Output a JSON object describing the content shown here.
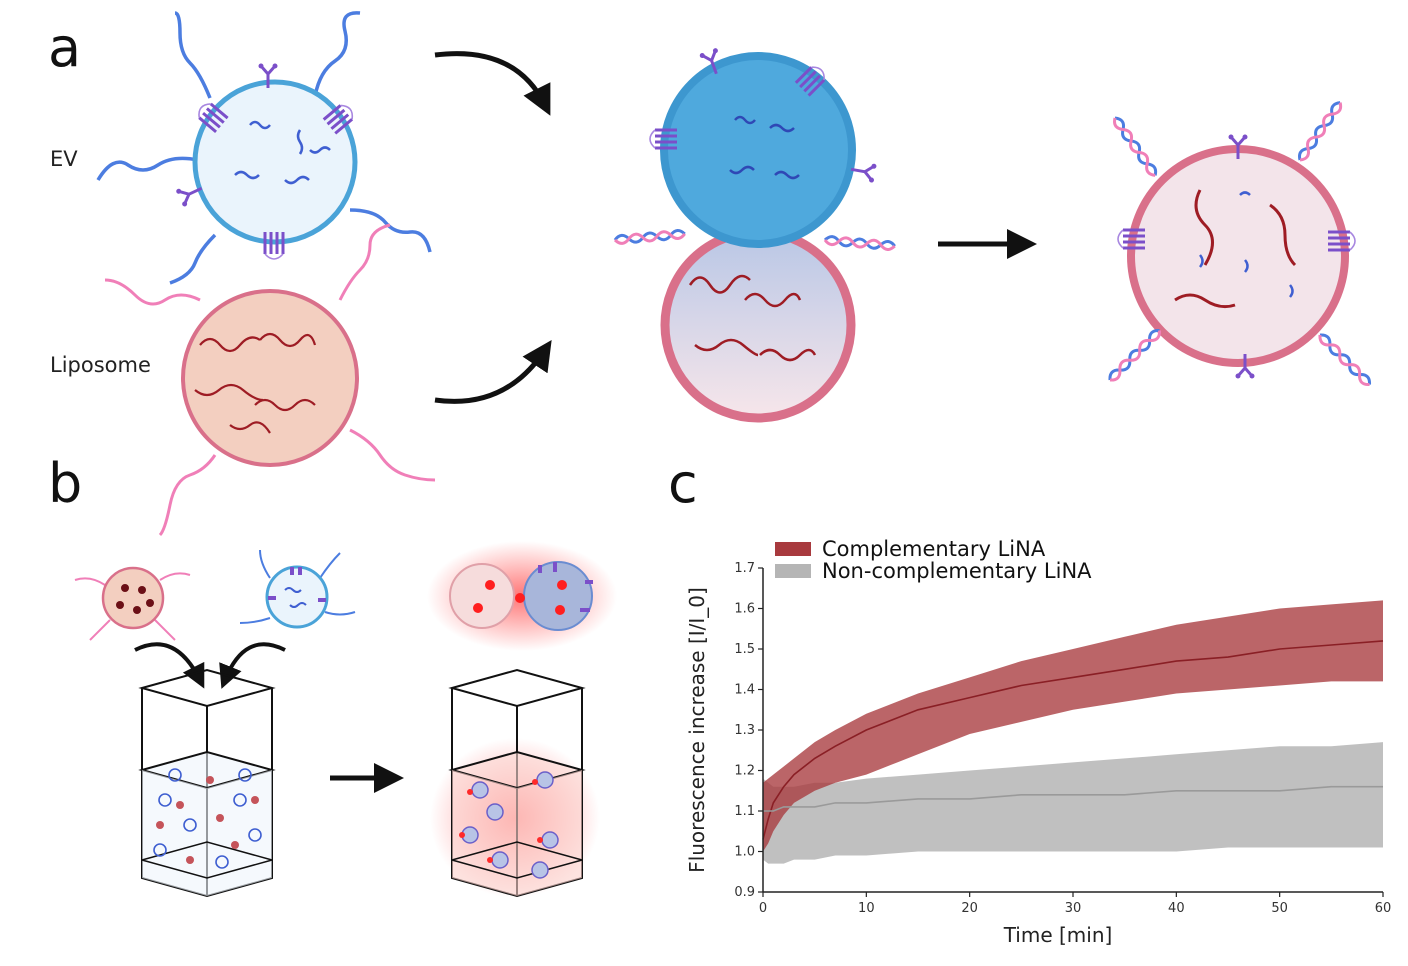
{
  "panels": {
    "a": "a",
    "b": "b",
    "c": "c"
  },
  "labels": {
    "ev": "EV",
    "liposome": "Liposome"
  },
  "colors": {
    "ev_membrane": "#4aa3d8",
    "ev_fill": "#eaf4fc",
    "liposome_membrane": "#d9708a",
    "liposome_fill": "#f3cfc0",
    "rna": "#3f5fd1",
    "cargo": "#9e1c24",
    "protein": "#7b4fc9",
    "lina_blue": "#4c7de0",
    "lina_pink": "#f07fb8",
    "complementary": "#a83a3e",
    "noncomplementary": "#b5b5b5"
  },
  "icons": [
    "curved-arrow-icon",
    "right-arrow-icon",
    "cuvette-icon"
  ],
  "chart_data": {
    "type": "line",
    "xlabel": "Time [min]",
    "ylabel": "Fluorescence increase [I/I_0]",
    "xlim": [
      0,
      60
    ],
    "ylim": [
      0.9,
      1.7
    ],
    "xticks": [
      "0",
      "10",
      "20",
      "30",
      "40",
      "50",
      "60"
    ],
    "yticks": [
      "0.9",
      "1.0",
      "1.1",
      "1.2",
      "1.3",
      "1.4",
      "1.5",
      "1.6",
      "1.7"
    ],
    "legend_position": "top-left",
    "x": [
      0,
      0.5,
      1,
      2,
      3,
      5,
      7,
      10,
      15,
      20,
      25,
      30,
      35,
      40,
      45,
      50,
      55,
      60
    ],
    "series": [
      {
        "name": "Complementary LiNA",
        "color": "#a83a3e",
        "mean": [
          1.03,
          1.08,
          1.12,
          1.16,
          1.19,
          1.23,
          1.26,
          1.3,
          1.35,
          1.38,
          1.41,
          1.43,
          1.45,
          1.47,
          1.48,
          1.5,
          1.51,
          1.52
        ],
        "upper": [
          1.17,
          1.18,
          1.19,
          1.21,
          1.23,
          1.27,
          1.3,
          1.34,
          1.39,
          1.43,
          1.47,
          1.5,
          1.53,
          1.56,
          1.58,
          1.6,
          1.61,
          1.62
        ],
        "lower": [
          1.0,
          1.02,
          1.05,
          1.09,
          1.12,
          1.15,
          1.17,
          1.19,
          1.24,
          1.29,
          1.32,
          1.35,
          1.37,
          1.39,
          1.4,
          1.41,
          1.42,
          1.42
        ]
      },
      {
        "name": "Non-complementary LiNA",
        "color": "#b5b5b5",
        "mean": [
          1.1,
          1.1,
          1.1,
          1.11,
          1.11,
          1.11,
          1.12,
          1.12,
          1.13,
          1.13,
          1.14,
          1.14,
          1.14,
          1.15,
          1.15,
          1.15,
          1.16,
          1.16
        ],
        "upper": [
          1.18,
          1.17,
          1.16,
          1.16,
          1.16,
          1.17,
          1.17,
          1.18,
          1.19,
          1.2,
          1.21,
          1.22,
          1.23,
          1.24,
          1.25,
          1.26,
          1.26,
          1.27
        ],
        "lower": [
          0.98,
          0.97,
          0.97,
          0.97,
          0.98,
          0.98,
          0.99,
          0.99,
          1.0,
          1.0,
          1.0,
          1.0,
          1.0,
          1.0,
          1.01,
          1.01,
          1.01,
          1.01
        ]
      }
    ]
  }
}
